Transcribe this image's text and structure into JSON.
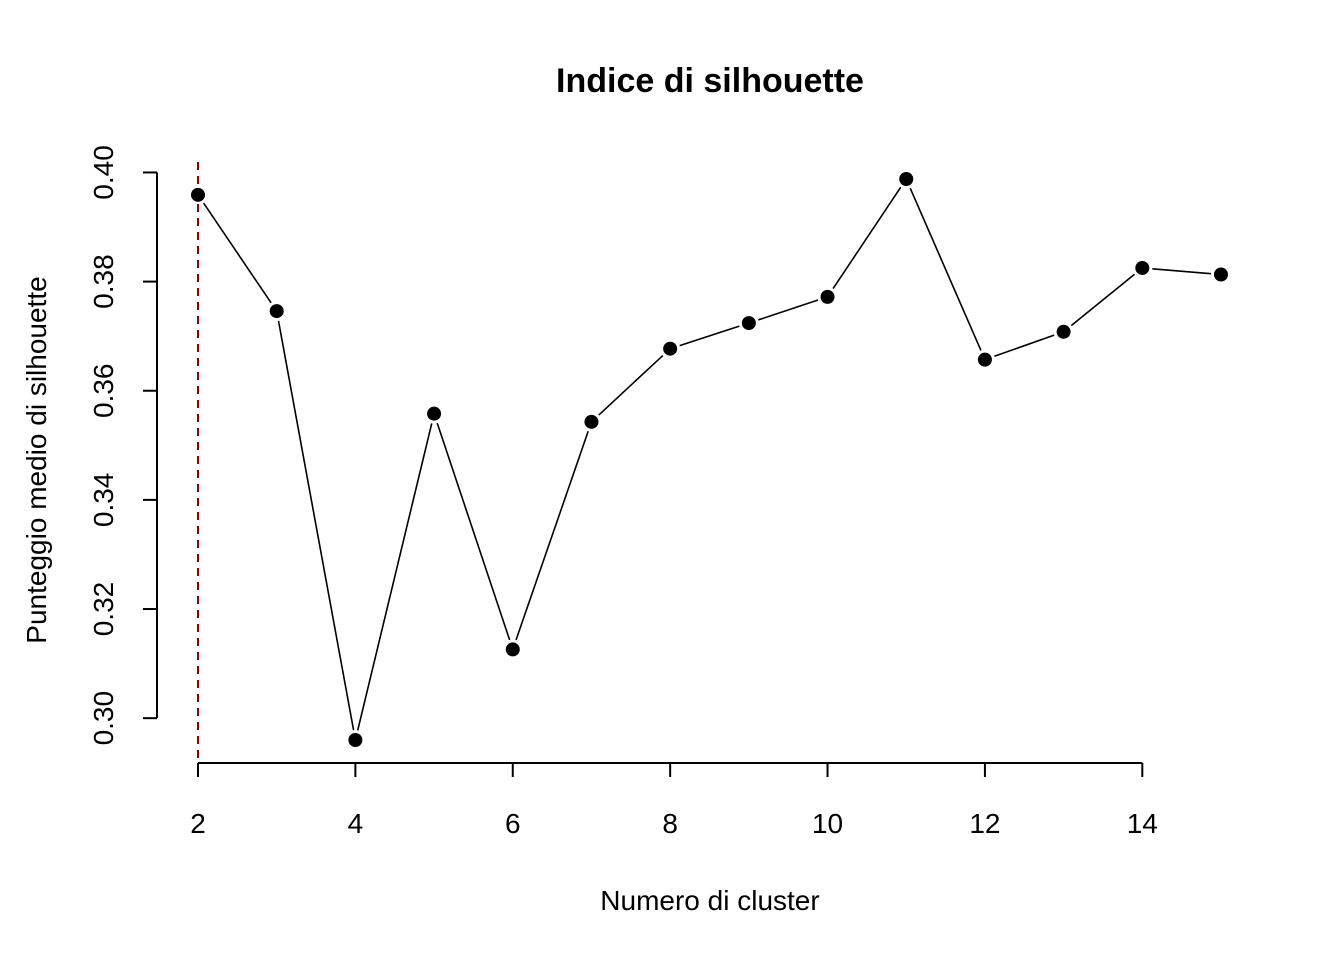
{
  "chart_data": {
    "type": "line",
    "title": "Indice di silhouette",
    "xlabel": "Numero di cluster",
    "ylabel": "Punteggio medio di silhouette",
    "x": [
      2,
      3,
      4,
      5,
      6,
      7,
      8,
      9,
      10,
      11,
      12,
      13,
      14,
      15
    ],
    "y": [
      0.3959,
      0.3746,
      0.296,
      0.3558,
      0.3126,
      0.3543,
      0.3677,
      0.3724,
      0.3772,
      0.3988,
      0.3657,
      0.3708,
      0.3825,
      0.3813
    ],
    "xlim": [
      2,
      15
    ],
    "ylim": [
      0.296,
      0.3988
    ],
    "xticks": [
      2,
      4,
      6,
      8,
      10,
      12,
      14
    ],
    "yticks": [
      0.3,
      0.32,
      0.34,
      0.36,
      0.38,
      0.4
    ],
    "xtick_labels": [
      "2",
      "4",
      "6",
      "8",
      "10",
      "12",
      "14"
    ],
    "ytick_labels": [
      "0.30",
      "0.32",
      "0.34",
      "0.36",
      "0.38",
      "0.40"
    ],
    "reference_line": {
      "x": 2,
      "color": "#8b0000",
      "style": "dashed"
    },
    "grid": false,
    "marker": "filled-circle"
  }
}
